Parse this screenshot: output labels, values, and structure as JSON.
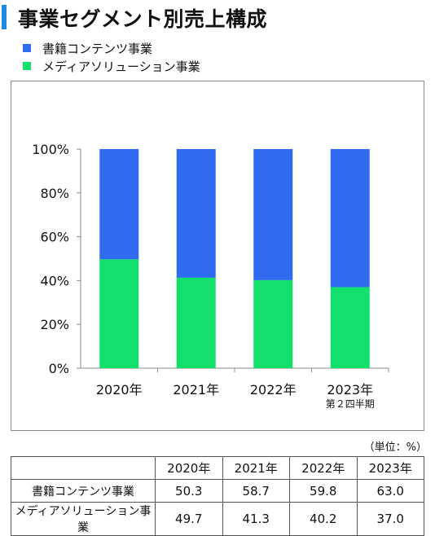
{
  "title": "事業セグメント別売上構成",
  "colors": {
    "books": "#2f6cf0",
    "media": "#11e06a",
    "accent": "#1e88e5"
  },
  "chart_data": {
    "type": "bar",
    "stacked": true,
    "categories": [
      "2020年",
      "2021年",
      "2022年",
      "2023年"
    ],
    "category_sublabels": [
      "",
      "",
      "",
      "第２四半期"
    ],
    "series": [
      {
        "name": "メディアソリューション事業",
        "values": [
          49.7,
          41.3,
          40.2,
          37.0
        ]
      },
      {
        "name": "書籍コンテンツ事業",
        "values": [
          50.3,
          58.7,
          59.8,
          63.0
        ]
      }
    ],
    "ylim": [
      0,
      100
    ],
    "yticks": [
      "0%",
      "20%",
      "40%",
      "60%",
      "80%",
      "100%"
    ],
    "legend_position": "top-left",
    "grid": false
  },
  "unit_note": "（単位：%）",
  "table": {
    "headers": [
      "2020年",
      "2021年",
      "2022年",
      "2023年"
    ],
    "rows": [
      {
        "label": "書籍コンテンツ事業",
        "values": [
          "50.3",
          "58.7",
          "59.8",
          "63.0"
        ]
      },
      {
        "label": "メディアソリューション事業",
        "values": [
          "49.7",
          "41.3",
          "40.2",
          "37.0"
        ]
      }
    ]
  }
}
